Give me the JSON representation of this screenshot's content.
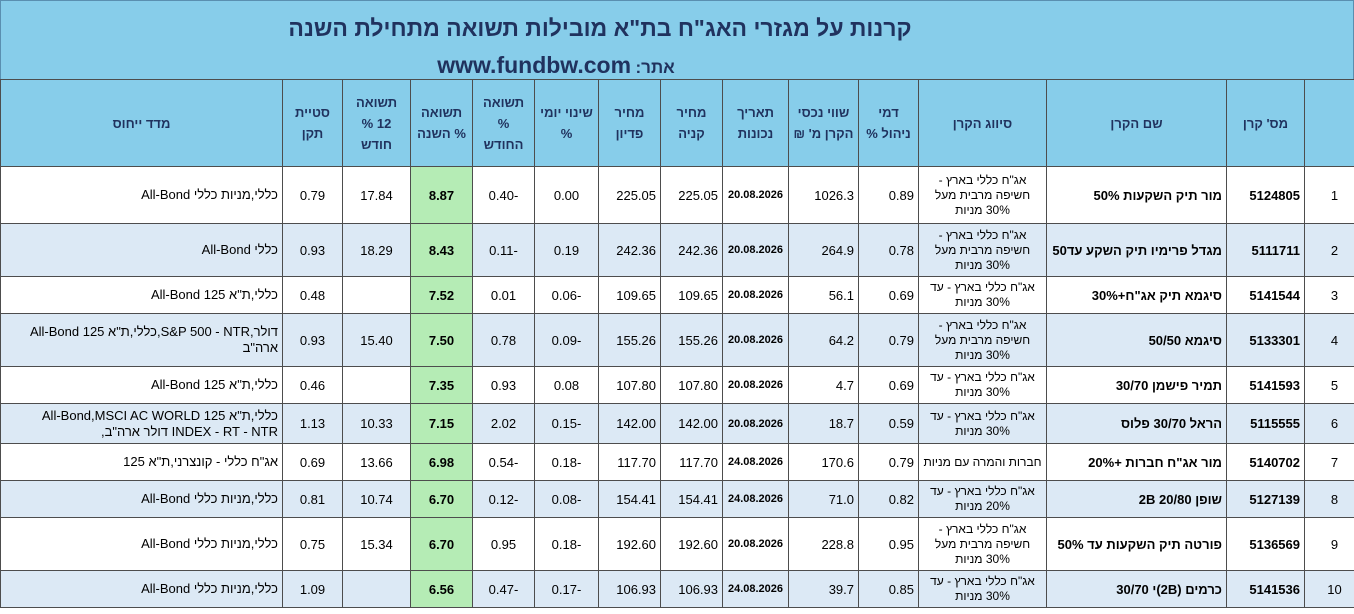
{
  "header": {
    "title": "קרנות על מגזרי האג\"ח בת\"א מובילות תשואה מתחילת השנה",
    "site_label": "אתר:",
    "site_url": "www.fundbw.com"
  },
  "columns": [
    "מס' קרן",
    "שם הקרן",
    "סיווג הקרן",
    "דמי ניהול %",
    "שווי נכסי הקרן מ' ₪",
    "תאריך נכונות",
    "מחיר קניה",
    "מחיר פדיון",
    "שינוי יומי %",
    "תשואה % החודש",
    "תשואה % השנה",
    "תשואה 12 % חודש",
    "סטיית תקן",
    "מדד ייחוס"
  ],
  "rows": [
    {
      "idx": "1",
      "id": "5124805",
      "name": "מור תיק השקעות 50%",
      "type": "אג\"ח כללי בארץ - חשיפה מרבית מעל 30% מניות",
      "fee": "0.89",
      "assets": "1026.3",
      "date": "20.08.2026",
      "buy": "225.05",
      "redeem": "225.05",
      "daily": "0.00",
      "month": "-0.40",
      "ytd": "8.87",
      "y12": "17.84",
      "std": "0.79",
      "bench": "כללי,מניות כללי All-Bond"
    },
    {
      "idx": "2",
      "id": "5111711",
      "name": "מגדל פרימיו תיק השקע עד50",
      "type": "אג\"ח כללי בארץ - חשיפה מרבית מעל 30% מניות",
      "fee": "0.78",
      "assets": "264.9",
      "date": "20.08.2026",
      "buy": "242.36",
      "redeem": "242.36",
      "daily": "0.19",
      "month": "-0.11",
      "ytd": "8.43",
      "y12": "18.29",
      "std": "0.93",
      "bench": "כללי All-Bond"
    },
    {
      "idx": "3",
      "id": "5141544",
      "name": "סיגמא תיק אג\"ח+30%",
      "type": "אג\"ח כללי בארץ - עד 30% מניות",
      "fee": "0.69",
      "assets": "56.1",
      "date": "20.08.2026",
      "buy": "109.65",
      "redeem": "109.65",
      "daily": "-0.06",
      "month": "0.01",
      "ytd": "7.52",
      "y12": "",
      "std": "0.48",
      "bench": "כללי,ת\"א 125 All-Bond"
    },
    {
      "idx": "4",
      "id": "5133301",
      "name": "סיגמא 50/50",
      "type": "אג\"ח כללי בארץ - חשיפה מרבית מעל 30% מניות",
      "fee": "0.79",
      "assets": "64.2",
      "date": "20.08.2026",
      "buy": "155.26",
      "redeem": "155.26",
      "daily": "-0.09",
      "month": "0.78",
      "ytd": "7.50",
      "y12": "15.40",
      "std": "0.93",
      "bench": "דולר,S&P 500 - NTR,כללי,ת\"א 125 All-Bond ארה\"ב"
    },
    {
      "idx": "5",
      "id": "5141593",
      "name": "תמיר פישמן 30/70",
      "type": "אג\"ח כללי בארץ - עד 30% מניות",
      "fee": "0.69",
      "assets": "4.7",
      "date": "20.08.2026",
      "buy": "107.80",
      "redeem": "107.80",
      "daily": "0.08",
      "month": "0.93",
      "ytd": "7.35",
      "y12": "",
      "std": "0.46",
      "bench": "כללי,ת\"א 125 All-Bond"
    },
    {
      "idx": "6",
      "id": "5115555",
      "name": "הראל 30/70 פלוס",
      "type": "אג\"ח כללי בארץ - עד 30% מניות",
      "fee": "0.59",
      "assets": "18.7",
      "date": "20.08.2026",
      "buy": "142.00",
      "redeem": "142.00",
      "daily": "-0.15",
      "month": "2.02",
      "ytd": "7.15",
      "y12": "10.33",
      "std": "1.13",
      "bench": "כללי,ת\"א 125 All-Bond,MSCI AC WORLD INDEX - RT - NTR דולר ארה\"ב,"
    },
    {
      "idx": "7",
      "id": "5140702",
      "name": "מור אג\"ח חברות +20%",
      "type": "חברות והמרה עם מניות",
      "fee": "0.79",
      "assets": "170.6",
      "date": "24.08.2026",
      "buy": "117.70",
      "redeem": "117.70",
      "daily": "-0.18",
      "month": "-0.54",
      "ytd": "6.98",
      "y12": "13.66",
      "std": "0.69",
      "bench": "אג\"ח כללי - קונצרני,ת\"א 125"
    },
    {
      "idx": "8",
      "id": "5127139",
      "name": "שופן 20/80 2B",
      "type": "אג\"ח כללי בארץ - עד 20% מניות",
      "fee": "0.82",
      "assets": "71.0",
      "date": "24.08.2026",
      "buy": "154.41",
      "redeem": "154.41",
      "daily": "-0.08",
      "month": "-0.12",
      "ytd": "6.70",
      "y12": "10.74",
      "std": "0.81",
      "bench": "כללי,מניות כללי All-Bond"
    },
    {
      "idx": "9",
      "id": "5136569",
      "name": "פורטה תיק השקעות עד 50%",
      "type": "אג\"ח כללי בארץ - חשיפה מרבית מעל 30% מניות",
      "fee": "0.95",
      "assets": "228.8",
      "date": "20.08.2026",
      "buy": "192.60",
      "redeem": "192.60",
      "daily": "-0.18",
      "month": "0.95",
      "ytd": "6.70",
      "y12": "15.34",
      "std": "0.75",
      "bench": "כללי,מניות כללי All-Bond"
    },
    {
      "idx": "10",
      "id": "5141536",
      "name": "כרמים (2B)י 30/70",
      "type": "אג\"ח כללי בארץ - עד 30% מניות",
      "fee": "0.85",
      "assets": "39.7",
      "date": "24.08.2026",
      "buy": "106.93",
      "redeem": "106.93",
      "daily": "-0.17",
      "month": "-0.47",
      "ytd": "6.56",
      "y12": "",
      "std": "1.09",
      "bench": "כללי,מניות כללי All-Bond"
    }
  ]
}
